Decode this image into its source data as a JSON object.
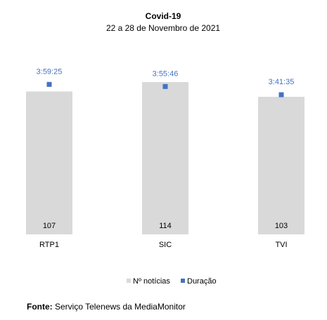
{
  "chart_data": {
    "type": "bar",
    "title": "Covid-19",
    "subtitle": "22 a 28 de Novembro de 2021",
    "categories": [
      "RTP1",
      "SIC",
      "TVI"
    ],
    "series": [
      {
        "name": "Nº notícias",
        "kind": "bar",
        "color": "#d9d9d9",
        "values": [
          107,
          114,
          103
        ],
        "data_labels": [
          "107",
          "114",
          "103"
        ]
      },
      {
        "name": "Duração",
        "kind": "marker",
        "color": "#4472c4",
        "values_seconds": [
          14365,
          14146,
          13295
        ],
        "data_labels": [
          "3:59:25",
          "3:55:46",
          "3:41:35"
        ]
      }
    ],
    "grid": false,
    "legend": "bottom"
  },
  "source": {
    "label": "Fonte:",
    "text": "Serviço Telenews da MediaMonitor"
  }
}
